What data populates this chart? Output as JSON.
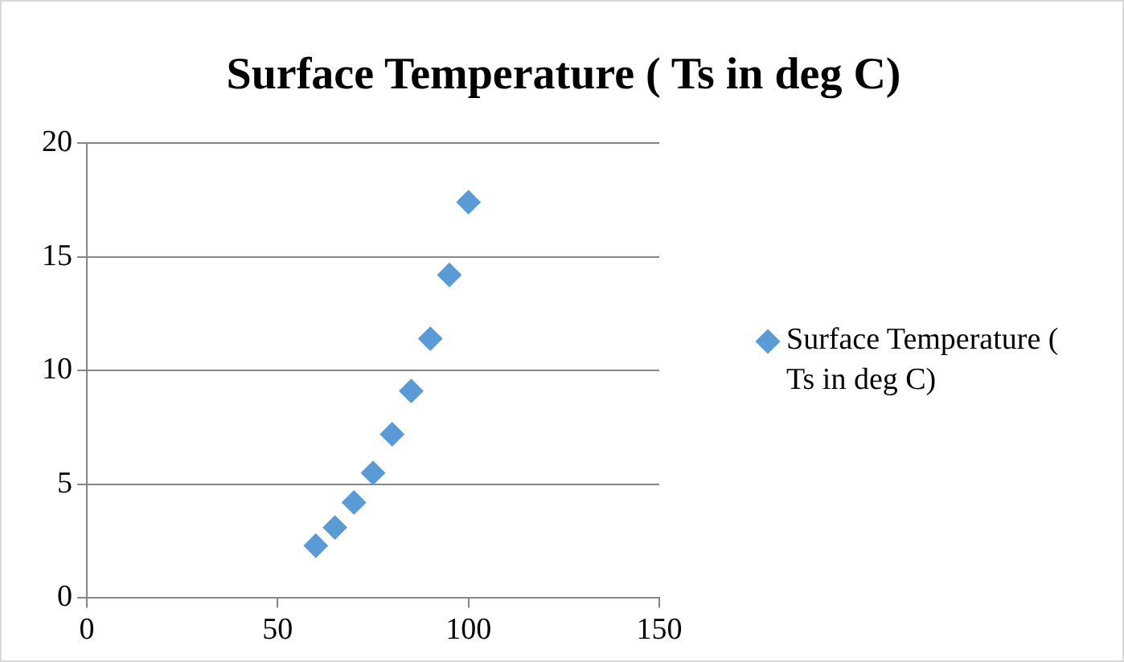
{
  "chart_data": {
    "type": "scatter",
    "title": "Surface Temperature ( Ts in deg C)",
    "x": [
      60,
      65,
      70,
      75,
      80,
      85,
      90,
      95,
      100
    ],
    "series": [
      {
        "name": "Surface Temperature ( Ts in deg C)",
        "color": "#5b9bd5",
        "values": [
          2.3,
          3.1,
          4.2,
          5.5,
          7.2,
          9.1,
          11.4,
          14.2,
          17.4
        ]
      }
    ],
    "xlim": [
      0,
      150
    ],
    "xticks": [
      0,
      50,
      100,
      150
    ],
    "ylim": [
      0,
      20
    ],
    "yticks": [
      0,
      5,
      10,
      15,
      20
    ],
    "grid": "y",
    "legend": "right",
    "marker": "diamond"
  }
}
